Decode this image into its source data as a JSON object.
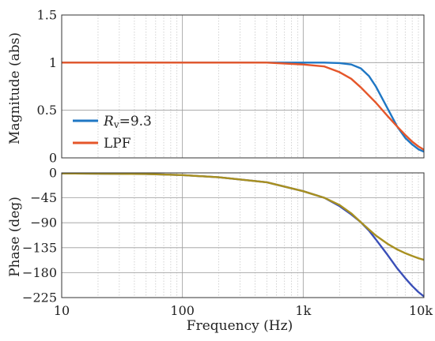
{
  "chart_data": [
    {
      "type": "line",
      "xscale": "log",
      "xlim": [
        10,
        10000
      ],
      "ylim": [
        0,
        1.5
      ],
      "grid": true,
      "ylabel": "Magnitude (abs)",
      "yticks": [
        0,
        0.5,
        1,
        1.5
      ],
      "ytick_labels": [
        "0",
        "0.5",
        "1",
        "1.5"
      ],
      "legend": {
        "position": "left",
        "entries": [
          {
            "series": "Rv",
            "label_main": "R",
            "label_sub": "v",
            "label_tail": "=9.3"
          },
          {
            "series": "LPF",
            "label": "LPF"
          }
        ]
      },
      "series": [
        {
          "name": "Rv",
          "color": "#1f77c4",
          "x": [
            10,
            100,
            500,
            1000,
            1500,
            2000,
            2500,
            3000,
            3500,
            4000,
            5000,
            6000,
            7000,
            8000,
            9000,
            10000
          ],
          "y": [
            1.0,
            1.0,
            1.0,
            1.0,
            1.0,
            0.995,
            0.98,
            0.94,
            0.86,
            0.75,
            0.52,
            0.33,
            0.21,
            0.14,
            0.09,
            0.065
          ]
        },
        {
          "name": "LPF",
          "color": "#e5562a",
          "x": [
            10,
            100,
            500,
            1000,
            1500,
            2000,
            2500,
            3000,
            4000,
            5000,
            6000,
            7000,
            8000,
            9000,
            10000
          ],
          "y": [
            1.0,
            1.0,
            1.0,
            0.98,
            0.96,
            0.9,
            0.83,
            0.74,
            0.58,
            0.44,
            0.33,
            0.24,
            0.17,
            0.12,
            0.085
          ]
        }
      ]
    },
    {
      "type": "line",
      "xscale": "log",
      "xlim": [
        10,
        10000
      ],
      "ylim": [
        -225,
        0
      ],
      "grid": true,
      "xlabel": "Frequency (Hz)",
      "ylabel": "Phase (deg)",
      "xticks": [
        10,
        100,
        1000,
        10000
      ],
      "xtick_labels": [
        "10",
        "100",
        "1k",
        "10k"
      ],
      "yticks": [
        0,
        -45,
        -90,
        -135,
        -180,
        -225
      ],
      "ytick_labels": [
        "0",
        "−45",
        "−90",
        "−135",
        "−180",
        "−225"
      ],
      "series": [
        {
          "name": "Rv",
          "color": "#3a4fb8",
          "x": [
            10,
            50,
            100,
            200,
            500,
            1000,
            1500,
            2000,
            2500,
            3000,
            3500,
            4000,
            5000,
            6000,
            7000,
            8000,
            9000,
            10000
          ],
          "y": [
            -1,
            -2,
            -4,
            -8,
            -17,
            -33,
            -45,
            -60,
            -75,
            -89,
            -104,
            -120,
            -148,
            -172,
            -190,
            -204,
            -215,
            -223
          ]
        },
        {
          "name": "LPF",
          "color": "#a89020",
          "x": [
            10,
            50,
            100,
            200,
            500,
            1000,
            1500,
            2000,
            2500,
            3000,
            3500,
            4000,
            5000,
            6000,
            7000,
            8000,
            9000,
            10000
          ],
          "y": [
            -1,
            -2,
            -4,
            -8,
            -17,
            -33,
            -45,
            -58,
            -73,
            -89,
            -102,
            -113,
            -128,
            -138,
            -145,
            -150,
            -154,
            -157
          ]
        }
      ]
    }
  ]
}
